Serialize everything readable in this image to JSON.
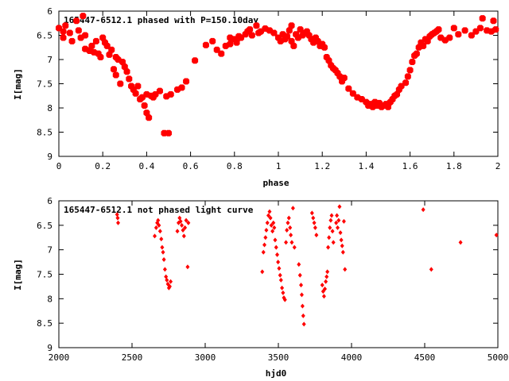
{
  "chart_data": [
    {
      "type": "scatter",
      "title": "165447-6512.1 phased with P=150.10day",
      "xlabel": "phase",
      "ylabel": "I[mag]",
      "xlim": [
        0,
        2
      ],
      "ylim": [
        9,
        6
      ],
      "y_inverted": true,
      "xticks": [
        "0",
        "0.2",
        "0.4",
        "0.6",
        "0.8",
        "1",
        "1.2",
        "1.4",
        "1.6",
        "1.8",
        "2"
      ],
      "yticks": [
        "6",
        "6.5",
        "7",
        "7.5",
        "8",
        "8.5",
        "9"
      ],
      "marker_color": "#ff0000",
      "grid": false,
      "points": [
        [
          0.0,
          6.35
        ],
        [
          0.02,
          6.42
        ],
        [
          0.02,
          6.55
        ],
        [
          0.03,
          6.3
        ],
        [
          0.05,
          6.45
        ],
        [
          0.06,
          6.62
        ],
        [
          0.08,
          6.2
        ],
        [
          0.09,
          6.4
        ],
        [
          0.1,
          6.55
        ],
        [
          0.11,
          6.1
        ],
        [
          0.12,
          6.5
        ],
        [
          0.12,
          6.78
        ],
        [
          0.14,
          6.82
        ],
        [
          0.15,
          6.72
        ],
        [
          0.16,
          6.85
        ],
        [
          0.18,
          6.88
        ],
        [
          0.17,
          6.62
        ],
        [
          0.19,
          6.95
        ],
        [
          0.2,
          6.55
        ],
        [
          0.21,
          6.65
        ],
        [
          0.22,
          6.72
        ],
        [
          0.23,
          6.9
        ],
        [
          0.24,
          6.8
        ],
        [
          0.25,
          7.2
        ],
        [
          0.26,
          6.95
        ],
        [
          0.26,
          7.32
        ],
        [
          0.27,
          7.0
        ],
        [
          0.28,
          7.5
        ],
        [
          0.29,
          7.05
        ],
        [
          0.3,
          7.15
        ],
        [
          0.31,
          7.25
        ],
        [
          0.32,
          7.4
        ],
        [
          0.33,
          7.55
        ],
        [
          0.34,
          7.62
        ],
        [
          0.35,
          7.7
        ],
        [
          0.36,
          7.55
        ],
        [
          0.37,
          7.82
        ],
        [
          0.38,
          7.78
        ],
        [
          0.39,
          7.95
        ],
        [
          0.4,
          7.72
        ],
        [
          0.4,
          8.1
        ],
        [
          0.41,
          8.2
        ],
        [
          0.42,
          7.75
        ],
        [
          0.43,
          7.78
        ],
        [
          0.44,
          7.72
        ],
        [
          0.46,
          7.65
        ],
        [
          0.48,
          8.52
        ],
        [
          0.5,
          8.52
        ],
        [
          0.49,
          7.76
        ],
        [
          0.51,
          7.72
        ],
        [
          0.54,
          7.62
        ],
        [
          0.56,
          7.58
        ],
        [
          0.58,
          7.45
        ],
        [
          0.62,
          7.02
        ],
        [
          0.67,
          6.7
        ],
        [
          0.7,
          6.62
        ],
        [
          0.72,
          6.8
        ],
        [
          0.74,
          6.88
        ],
        [
          0.76,
          6.72
        ],
        [
          0.78,
          6.68
        ],
        [
          0.78,
          6.55
        ],
        [
          0.8,
          6.58
        ],
        [
          0.81,
          6.65
        ],
        [
          0.82,
          6.52
        ],
        [
          0.83,
          6.55
        ],
        [
          0.85,
          6.48
        ],
        [
          0.86,
          6.42
        ],
        [
          0.87,
          6.38
        ],
        [
          0.88,
          6.5
        ],
        [
          0.9,
          6.3
        ],
        [
          0.91,
          6.45
        ],
        [
          0.92,
          6.42
        ],
        [
          0.94,
          6.36
        ],
        [
          0.96,
          6.4
        ],
        [
          0.98,
          6.45
        ],
        [
          1.0,
          6.55
        ],
        [
          1.01,
          6.62
        ],
        [
          1.02,
          6.48
        ],
        [
          1.03,
          6.58
        ],
        [
          1.04,
          6.52
        ],
        [
          1.05,
          6.4
        ],
        [
          1.06,
          6.3
        ],
        [
          1.06,
          6.62
        ],
        [
          1.07,
          6.72
        ],
        [
          1.08,
          6.48
        ],
        [
          1.09,
          6.55
        ],
        [
          1.1,
          6.38
        ],
        [
          1.11,
          6.5
        ],
        [
          1.12,
          6.45
        ],
        [
          1.13,
          6.42
        ],
        [
          1.14,
          6.5
        ],
        [
          1.15,
          6.58
        ],
        [
          1.16,
          6.65
        ],
        [
          1.17,
          6.55
        ],
        [
          1.18,
          6.62
        ],
        [
          1.19,
          6.72
        ],
        [
          1.2,
          6.68
        ],
        [
          1.21,
          6.75
        ],
        [
          1.22,
          6.95
        ],
        [
          1.23,
          7.02
        ],
        [
          1.24,
          7.12
        ],
        [
          1.25,
          7.18
        ],
        [
          1.26,
          7.22
        ],
        [
          1.27,
          7.28
        ],
        [
          1.28,
          7.35
        ],
        [
          1.29,
          7.45
        ],
        [
          1.3,
          7.38
        ],
        [
          1.32,
          7.6
        ],
        [
          1.34,
          7.7
        ],
        [
          1.36,
          7.78
        ],
        [
          1.38,
          7.82
        ],
        [
          1.4,
          7.88
        ],
        [
          1.41,
          7.95
        ],
        [
          1.42,
          7.92
        ],
        [
          1.43,
          7.98
        ],
        [
          1.44,
          7.88
        ],
        [
          1.45,
          7.95
        ],
        [
          1.46,
          7.9
        ],
        [
          1.47,
          7.98
        ],
        [
          1.48,
          7.95
        ],
        [
          1.49,
          7.92
        ],
        [
          1.5,
          7.98
        ],
        [
          1.51,
          7.88
        ],
        [
          1.52,
          7.82
        ],
        [
          1.53,
          7.75
        ],
        [
          1.54,
          7.72
        ],
        [
          1.55,
          7.62
        ],
        [
          1.56,
          7.55
        ],
        [
          1.58,
          7.48
        ],
        [
          1.59,
          7.35
        ],
        [
          1.6,
          7.22
        ],
        [
          1.61,
          7.05
        ],
        [
          1.62,
          6.92
        ],
        [
          1.63,
          6.88
        ],
        [
          1.64,
          6.75
        ],
        [
          1.65,
          6.65
        ],
        [
          1.66,
          6.72
        ],
        [
          1.67,
          6.58
        ],
        [
          1.68,
          6.62
        ],
        [
          1.69,
          6.52
        ],
        [
          1.7,
          6.48
        ],
        [
          1.71,
          6.45
        ],
        [
          1.72,
          6.42
        ],
        [
          1.73,
          6.38
        ],
        [
          1.74,
          6.55
        ],
        [
          1.76,
          6.6
        ],
        [
          1.78,
          6.55
        ],
        [
          1.8,
          6.35
        ],
        [
          1.82,
          6.48
        ],
        [
          1.85,
          6.4
        ],
        [
          1.88,
          6.5
        ],
        [
          1.9,
          6.42
        ],
        [
          1.92,
          6.35
        ],
        [
          1.93,
          6.15
        ],
        [
          1.95,
          6.4
        ],
        [
          1.97,
          6.42
        ],
        [
          1.98,
          6.2
        ],
        [
          1.99,
          6.38
        ]
      ]
    },
    {
      "type": "scatter",
      "title": "165447-6512.1 not phased light curve",
      "xlabel": "hjd0",
      "ylabel": "I[mag]",
      "xlim": [
        2000,
        5000
      ],
      "ylim": [
        9,
        6
      ],
      "y_inverted": true,
      "xticks": [
        "2000",
        "2500",
        "3000",
        "3500",
        "4000",
        "4500",
        "5000"
      ],
      "yticks": [
        "6",
        "6.5",
        "7",
        "7.5",
        "8",
        "8.5",
        "9"
      ],
      "marker_color": "#ff0000",
      "grid": false,
      "points": [
        [
          2398,
          6.28
        ],
        [
          2402,
          6.35
        ],
        [
          2405,
          6.45
        ],
        [
          2655,
          6.72
        ],
        [
          2665,
          6.55
        ],
        [
          2672,
          6.45
        ],
        [
          2678,
          6.4
        ],
        [
          2684,
          6.5
        ],
        [
          2692,
          6.62
        ],
        [
          2700,
          6.78
        ],
        [
          2706,
          6.95
        ],
        [
          2712,
          7.05
        ],
        [
          2718,
          7.2
        ],
        [
          2725,
          7.4
        ],
        [
          2732,
          7.55
        ],
        [
          2738,
          7.62
        ],
        [
          2745,
          7.7
        ],
        [
          2752,
          7.78
        ],
        [
          2758,
          7.75
        ],
        [
          2764,
          7.65
        ],
        [
          2810,
          6.62
        ],
        [
          2818,
          6.45
        ],
        [
          2825,
          6.35
        ],
        [
          2832,
          6.42
        ],
        [
          2840,
          6.5
        ],
        [
          2848,
          6.6
        ],
        [
          2855,
          6.72
        ],
        [
          2862,
          6.55
        ],
        [
          2870,
          6.4
        ],
        [
          2880,
          7.35
        ],
        [
          2885,
          6.45
        ],
        [
          3390,
          7.45
        ],
        [
          3398,
          7.05
        ],
        [
          3405,
          6.9
        ],
        [
          3412,
          6.75
        ],
        [
          3418,
          6.6
        ],
        [
          3425,
          6.45
        ],
        [
          3432,
          6.3
        ],
        [
          3440,
          6.22
        ],
        [
          3446,
          6.35
        ],
        [
          3452,
          6.5
        ],
        [
          3460,
          6.62
        ],
        [
          3466,
          6.45
        ],
        [
          3472,
          6.55
        ],
        [
          3478,
          6.8
        ],
        [
          3485,
          6.95
        ],
        [
          3492,
          7.1
        ],
        [
          3498,
          7.25
        ],
        [
          3505,
          7.38
        ],
        [
          3512,
          7.52
        ],
        [
          3518,
          7.62
        ],
        [
          3525,
          7.78
        ],
        [
          3532,
          7.88
        ],
        [
          3538,
          7.98
        ],
        [
          3545,
          8.02
        ],
        [
          3552,
          6.85
        ],
        [
          3558,
          6.6
        ],
        [
          3565,
          6.45
        ],
        [
          3572,
          6.35
        ],
        [
          3580,
          6.55
        ],
        [
          3585,
          6.7
        ],
        [
          3592,
          6.85
        ],
        [
          3600,
          6.15
        ],
        [
          3610,
          6.95
        ],
        [
          3640,
          7.3
        ],
        [
          3648,
          7.52
        ],
        [
          3655,
          7.72
        ],
        [
          3660,
          7.92
        ],
        [
          3665,
          8.15
        ],
        [
          3670,
          8.35
        ],
        [
          3675,
          8.52
        ],
        [
          3730,
          6.25
        ],
        [
          3738,
          6.35
        ],
        [
          3745,
          6.45
        ],
        [
          3752,
          6.55
        ],
        [
          3760,
          6.7
        ],
        [
          3800,
          7.72
        ],
        [
          3806,
          7.85
        ],
        [
          3812,
          7.95
        ],
        [
          3818,
          7.8
        ],
        [
          3824,
          7.65
        ],
        [
          3830,
          7.55
        ],
        [
          3835,
          7.45
        ],
        [
          3840,
          6.95
        ],
        [
          3846,
          6.75
        ],
        [
          3852,
          6.55
        ],
        [
          3858,
          6.4
        ],
        [
          3864,
          6.3
        ],
        [
          3870,
          6.62
        ],
        [
          3876,
          6.85
        ],
        [
          3895,
          6.45
        ],
        [
          3900,
          6.3
        ],
        [
          3905,
          6.55
        ],
        [
          3912,
          6.4
        ],
        [
          3918,
          6.12
        ],
        [
          3924,
          6.65
        ],
        [
          3930,
          6.8
        ],
        [
          3936,
          6.92
        ],
        [
          3942,
          7.05
        ],
        [
          3948,
          6.42
        ],
        [
          3955,
          7.4
        ],
        [
          4490,
          6.18
        ],
        [
          4545,
          7.4
        ],
        [
          4745,
          6.85
        ],
        [
          4990,
          6.7
        ]
      ]
    }
  ]
}
